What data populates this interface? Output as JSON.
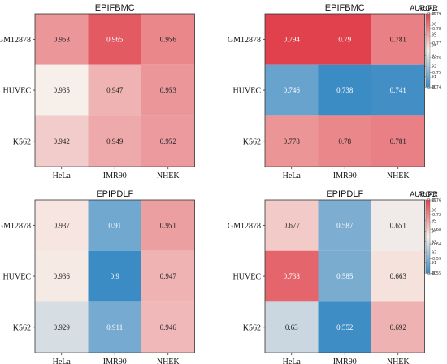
{
  "chart_data": [
    {
      "type": "heatmap",
      "title": "EPIFBMC",
      "colorbar_label": "AUROC",
      "rows": [
        "GM12878",
        "HUVEC",
        "K562"
      ],
      "cols": [
        "HeLa",
        "IMR90",
        "NHEK"
      ],
      "values": [
        [
          0.953,
          0.965,
          0.956
        ],
        [
          0.935,
          0.947,
          0.953
        ],
        [
          0.942,
          0.949,
          0.952
        ]
      ],
      "vmin": 0.9,
      "vmax": 0.97,
      "colorbar_ticks": [
        "0.97",
        "0.96",
        "0.95",
        "0.94",
        "0.93",
        "0.92",
        "0.91",
        "0.90"
      ]
    },
    {
      "type": "heatmap",
      "title": "EPIFBMC",
      "colorbar_label": "AUPR",
      "rows": [
        "GM12878",
        "HUVEC",
        "K562"
      ],
      "cols": [
        "HeLa",
        "IMR90",
        "NHEK"
      ],
      "values": [
        [
          0.794,
          0.79,
          0.781
        ],
        [
          0.746,
          0.738,
          0.741
        ],
        [
          0.778,
          0.78,
          0.781
        ]
      ],
      "vmin": 0.74,
      "vmax": 0.79,
      "colorbar_ticks": [
        "0.79",
        "0.78",
        "0.77",
        "0.76",
        "0.75",
        "0.74"
      ]
    },
    {
      "type": "heatmap",
      "title": "EPIPDLF",
      "colorbar_label": "AUROC",
      "rows": [
        "GM12878",
        "HUVEC",
        "K562"
      ],
      "cols": [
        "HeLa",
        "IMR90",
        "NHEK"
      ],
      "values": [
        [
          0.937,
          0.91,
          0.951
        ],
        [
          0.936,
          0.9,
          0.947
        ],
        [
          0.929,
          0.911,
          0.946
        ]
      ],
      "vmin": 0.9,
      "vmax": 0.97,
      "colorbar_ticks": [
        "0.97",
        "0.96",
        "0.95",
        "0.94",
        "0.93",
        "0.92",
        "0.91",
        "0.90"
      ]
    },
    {
      "type": "heatmap",
      "title": "EPIPDLF",
      "colorbar_label": "AUPR",
      "rows": [
        "GM12878",
        "HUVEC",
        "K562"
      ],
      "cols": [
        "HeLa",
        "IMR90",
        "NHEK"
      ],
      "values": [
        [
          0.677,
          0.587,
          0.651
        ],
        [
          0.738,
          0.585,
          0.663
        ],
        [
          0.63,
          0.552,
          0.692
        ]
      ],
      "vmin": 0.55,
      "vmax": 0.76,
      "colorbar_ticks": [
        "0.76",
        "0.72",
        "0.68",
        "0.64",
        "0.59",
        "0.55"
      ]
    }
  ],
  "colors": {
    "low": "#3b8bc4",
    "mid": "#f7efe9",
    "high": "#e0414c",
    "dark_text": "#222222",
    "light_text": "#ffffff"
  }
}
